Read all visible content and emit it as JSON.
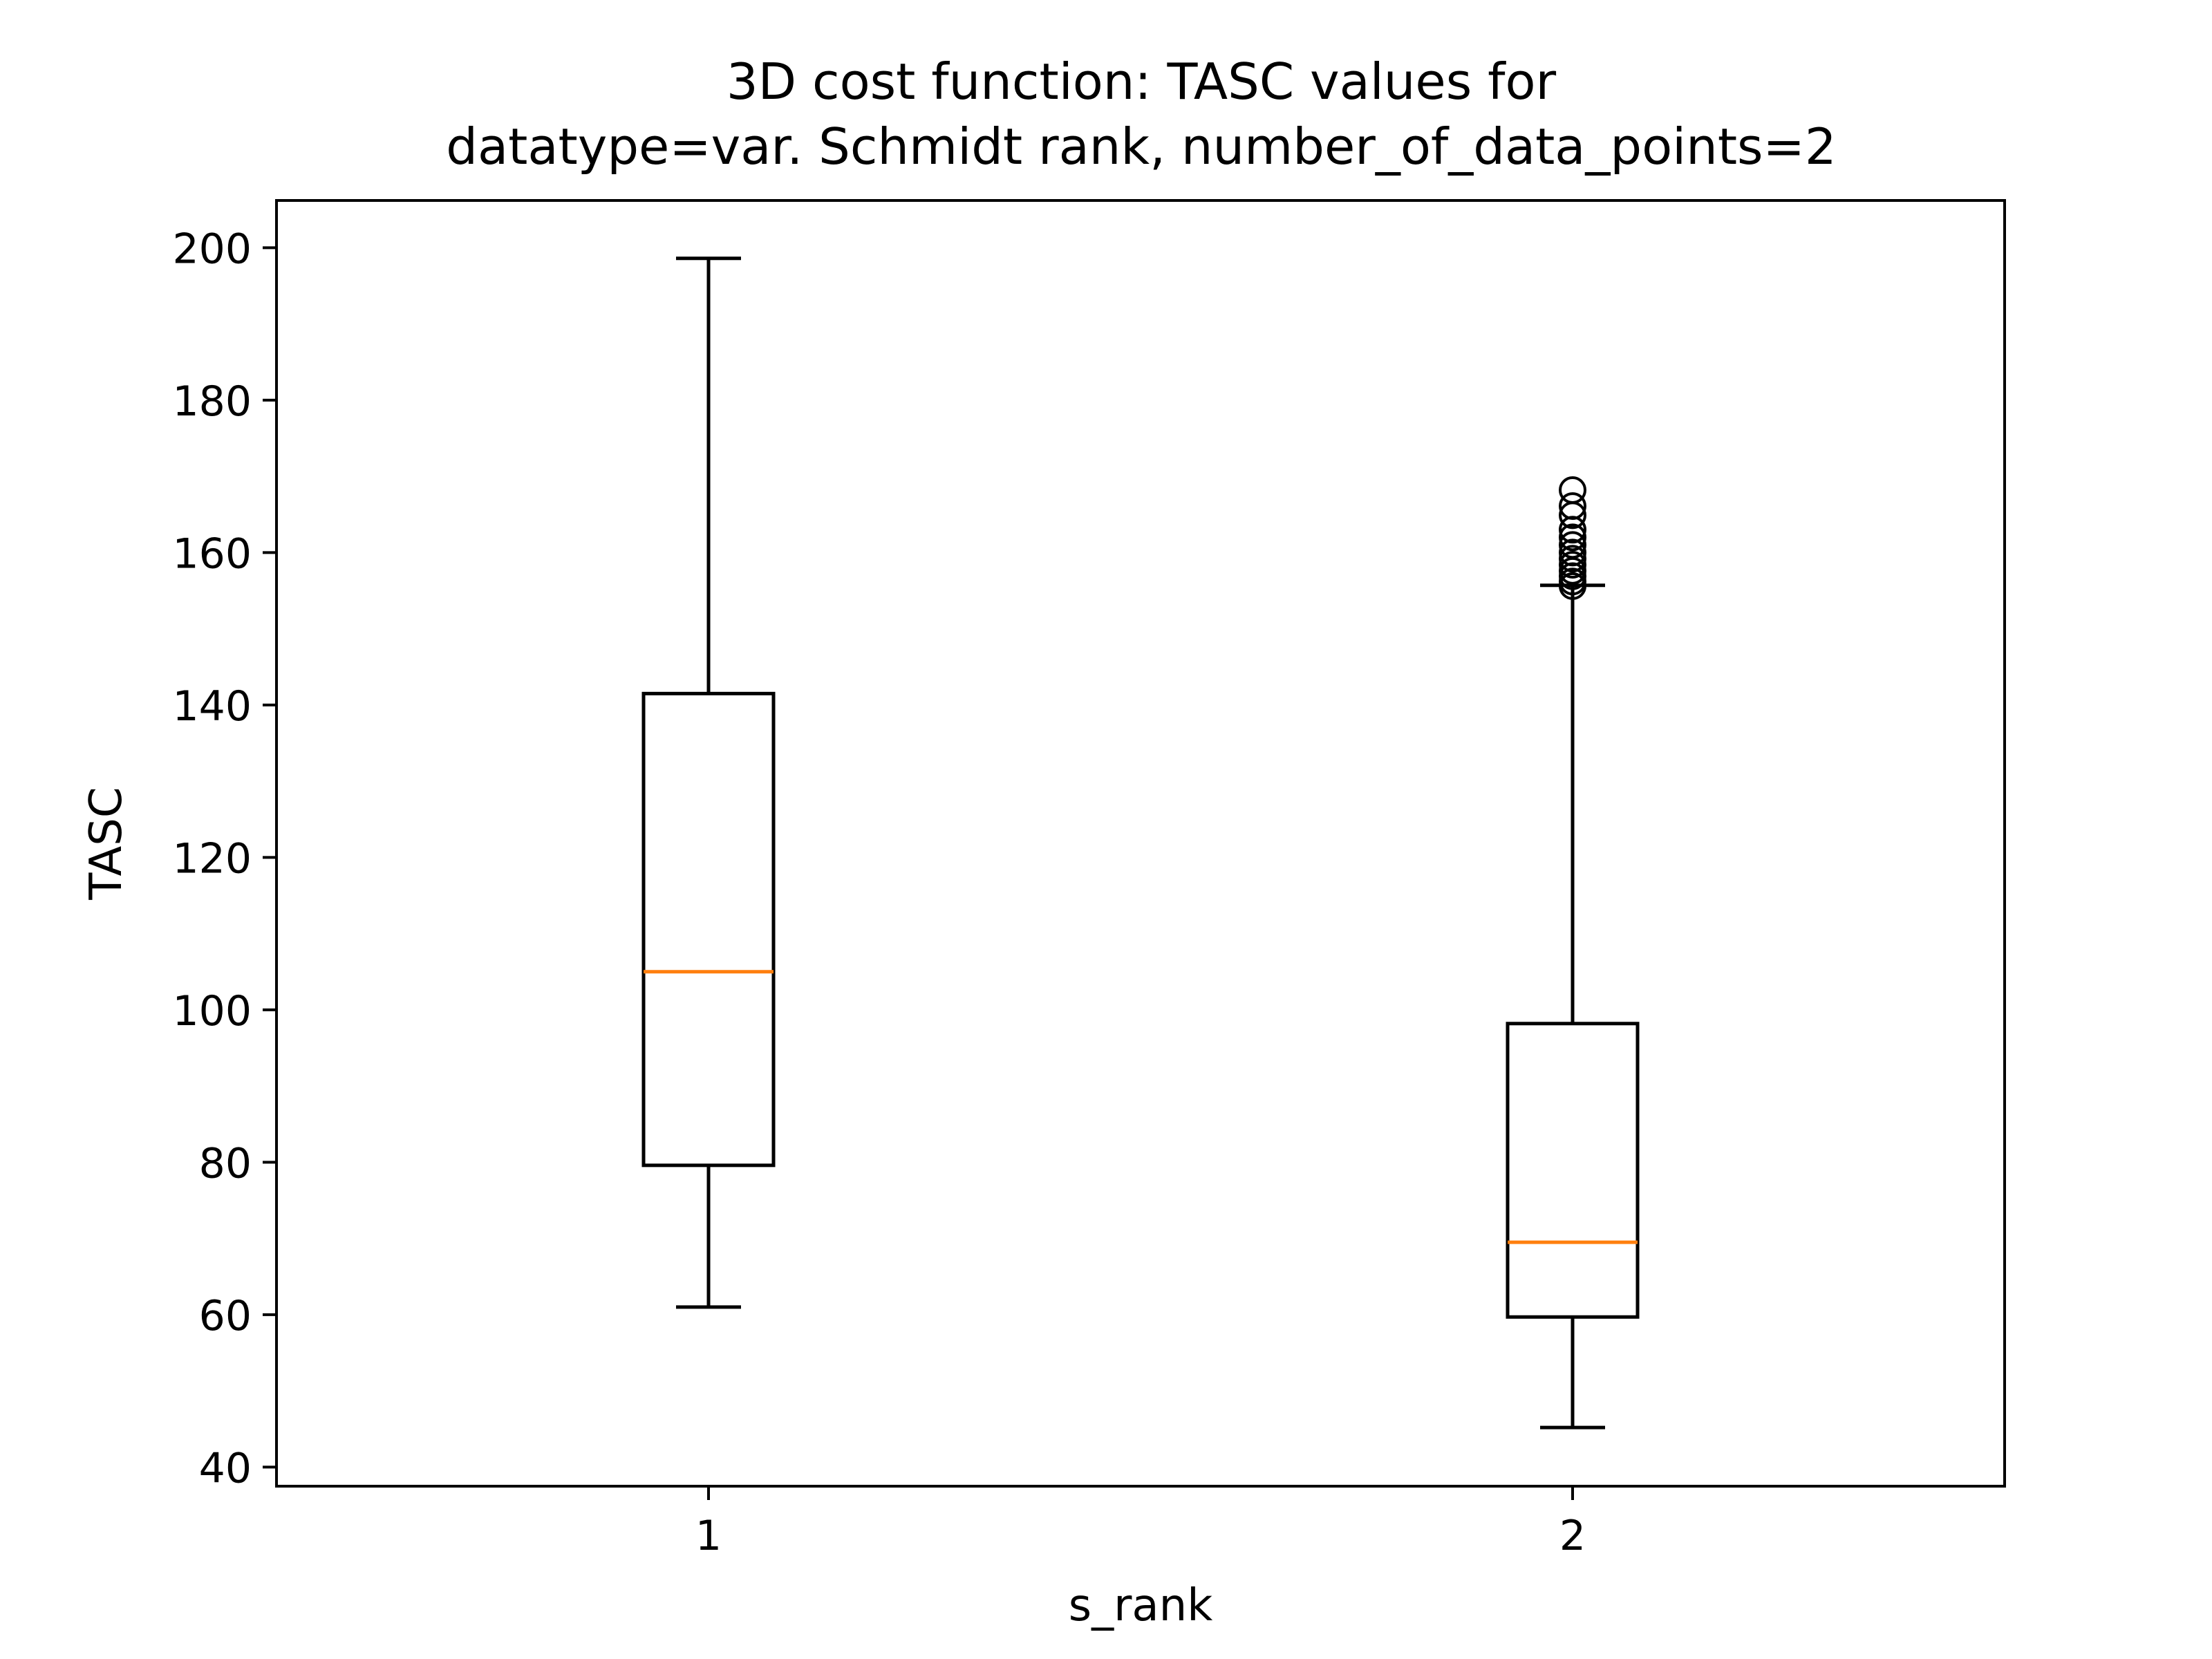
{
  "chart_data": {
    "type": "box",
    "title_lines": [
      "3D cost function: TASC values for",
      "datatype=var. Schmidt rank, number_of_data_points=2"
    ],
    "xlabel": "s_rank",
    "ylabel": "TASC",
    "categories": [
      "1",
      "2"
    ],
    "ylim": [
      37.5,
      206.2
    ],
    "yticks": [
      40,
      60,
      80,
      100,
      120,
      140,
      160,
      180,
      200
    ],
    "grid": false,
    "colors": {
      "box": "#000000",
      "median": "#ff7f0e",
      "frame": "#000000"
    },
    "boxes": [
      {
        "category": "1",
        "whisker_low": 61,
        "q1": 79.6,
        "median": 105,
        "q3": 141.5,
        "whisker_high": 198.6,
        "outliers": []
      },
      {
        "category": "2",
        "whisker_low": 45.2,
        "q1": 59.7,
        "median": 69.5,
        "q3": 98.2,
        "whisker_high": 155.7,
        "outliers": [
          155.6,
          156.2,
          156.9,
          157.6,
          158.4,
          159.2,
          160.0,
          161.0,
          162.0,
          163.0,
          164.9,
          166.1,
          168.2
        ]
      }
    ]
  }
}
